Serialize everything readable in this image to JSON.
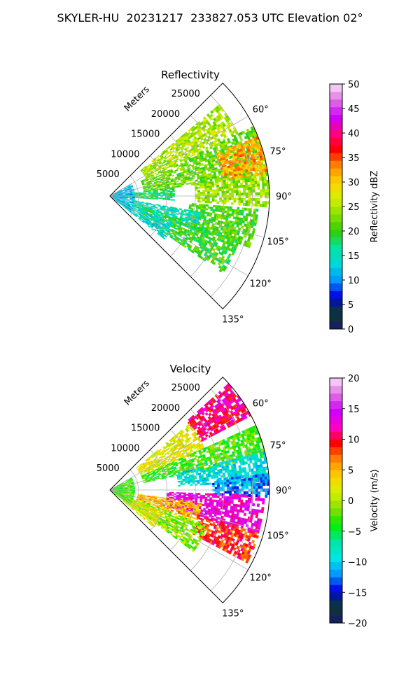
{
  "figure": {
    "suptitle": "SKYLER-HU  20231217  233827.053 UTC Elevation 02°"
  },
  "colors": {
    "grid": "#b0b0b0",
    "boundary": "#000000"
  },
  "chart_data": [
    {
      "type": "heatmap",
      "subtype": "polar-sector",
      "title": "Reflectivity",
      "radial_axis_label": "Meters",
      "radial_ticks": [
        5000,
        10000,
        15000,
        20000,
        25000
      ],
      "radial_tick_labels": [
        "5000",
        "10000",
        "15000",
        "20000",
        "25000"
      ],
      "radial_max": 28000,
      "theta_range_deg": [
        45,
        135
      ],
      "theta_ticks_deg": [
        60,
        75,
        90,
        105,
        120,
        135
      ],
      "theta_tick_labels": [
        "60°",
        "75°",
        "90°",
        "105°",
        "120°",
        "135°"
      ],
      "colorbar": {
        "label": "Reflectivity dBZ",
        "min": 0,
        "max": 50,
        "ticks": [
          0,
          5,
          10,
          15,
          20,
          25,
          30,
          35,
          40,
          45,
          50
        ],
        "tick_labels": [
          "0",
          "5",
          "10",
          "15",
          "20",
          "25",
          "30",
          "35",
          "40",
          "45",
          "50"
        ],
        "stops": [
          "#1a1a6e",
          "#0b3b2b",
          "#0000e0",
          "#0099ff",
          "#00d8d8",
          "#00e6a0",
          "#33cc00",
          "#88e000",
          "#d6f000",
          "#ffd000",
          "#ff8800",
          "#ff0000",
          "#ff0080",
          "#cc00ff",
          "#e070e0",
          "#fbe0fb"
        ]
      },
      "field": {
        "range_min": 0,
        "range_max": 28000,
        "echo_regions": [
          {
            "theta": [
              50,
              64
            ],
            "range": [
              7000,
              25000
            ],
            "value": 25
          },
          {
            "theta": [
              64,
              82
            ],
            "range": [
              6000,
              28000
            ],
            "value": 22
          },
          {
            "theta": [
              68,
              82
            ],
            "range": [
              20000,
              28000
            ],
            "value": 32
          },
          {
            "theta": [
              82,
              93
            ],
            "range": [
              3000,
              11000
            ],
            "value": 18
          },
          {
            "theta": [
              82,
              93
            ],
            "range": [
              15000,
              28000
            ],
            "value": 24
          },
          {
            "theta": [
              95,
              110
            ],
            "range": [
              14000,
              26000
            ],
            "value": 21
          },
          {
            "theta": [
              100,
              112
            ],
            "range": [
              4000,
              16000
            ],
            "value": 15
          },
          {
            "theta": [
              108,
              124
            ],
            "range": [
              6000,
              24000
            ],
            "value": 20
          },
          {
            "theta": [
              112,
              128
            ],
            "range": [
              500,
              12000
            ],
            "value": 14
          },
          {
            "theta": [
              60,
              125
            ],
            "range": [
              200,
              4000
            ],
            "value": 12
          }
        ]
      }
    },
    {
      "type": "heatmap",
      "subtype": "polar-sector",
      "title": "Velocity",
      "radial_axis_label": "Meters",
      "radial_ticks": [
        5000,
        10000,
        15000,
        20000,
        25000
      ],
      "radial_tick_labels": [
        "5000",
        "10000",
        "15000",
        "20000",
        "25000"
      ],
      "radial_max": 28000,
      "theta_range_deg": [
        45,
        135
      ],
      "theta_ticks_deg": [
        60,
        75,
        90,
        105,
        120,
        135
      ],
      "theta_tick_labels": [
        "60°",
        "75°",
        "90°",
        "105°",
        "120°",
        "135°"
      ],
      "colorbar": {
        "label": "Velocity (m/s)",
        "min": -20,
        "max": 20,
        "ticks": [
          -20,
          -15,
          -10,
          -5,
          0,
          5,
          10,
          15,
          20
        ],
        "tick_labels": [
          "−20",
          "−15",
          "−10",
          "−5",
          "0",
          "5",
          "10",
          "15",
          "20"
        ],
        "stops": [
          "#1a1a6e",
          "#0b3b2b",
          "#0000e0",
          "#0099ff",
          "#00e6e6",
          "#00e6a0",
          "#00ee00",
          "#88e000",
          "#d6f000",
          "#ffd000",
          "#ff8800",
          "#ff0000",
          "#ff00cc",
          "#cc00ff",
          "#e070e0",
          "#fbe0fb"
        ]
      },
      "field": {
        "range_min": 0,
        "range_max": 28000,
        "echo_regions": [
          {
            "theta": [
              48,
              62
            ],
            "range": [
              18000,
              28000
            ],
            "value": 11
          },
          {
            "theta": [
              50,
              66
            ],
            "range": [
              6000,
              18000
            ],
            "value": 2
          },
          {
            "theta": [
              66,
              78
            ],
            "range": [
              6000,
              28000
            ],
            "value": -3
          },
          {
            "theta": [
              76,
              86
            ],
            "range": [
              12000,
              28000
            ],
            "value": -9
          },
          {
            "theta": [
              84,
              92
            ],
            "range": [
              18000,
              28000
            ],
            "value": -12
          },
          {
            "theta": [
              92,
              106
            ],
            "range": [
              10000,
              27000
            ],
            "value": 13
          },
          {
            "theta": [
              98,
              110
            ],
            "range": [
              5000,
              16000
            ],
            "value": 5
          },
          {
            "theta": [
              106,
              118
            ],
            "range": [
              16000,
              27000
            ],
            "value": 9
          },
          {
            "theta": [
              110,
              126
            ],
            "range": [
              4000,
              18000
            ],
            "value": -1
          },
          {
            "theta": [
              112,
              130
            ],
            "range": [
              500,
              10000
            ],
            "value": 2
          },
          {
            "theta": [
              60,
              125
            ],
            "range": [
              200,
              4000
            ],
            "value": -3
          }
        ]
      }
    }
  ]
}
